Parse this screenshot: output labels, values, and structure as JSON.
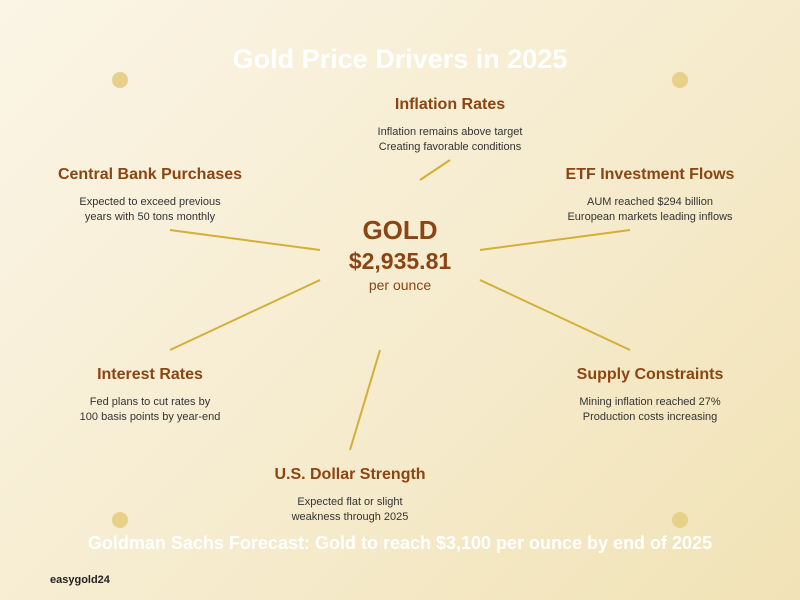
{
  "title": "Gold Price Drivers in 2025",
  "center": {
    "label": "GOLD",
    "price": "$2,935.81",
    "unit": "per ounce"
  },
  "drivers": [
    {
      "title": "Inflation Rates",
      "lines": [
        "Inflation remains above target",
        "Creating favorable conditions"
      ]
    },
    {
      "title": "Central Bank Purchases",
      "lines": [
        "Expected to exceed previous",
        "years with 50 tons monthly"
      ]
    },
    {
      "title": "ETF Investment Flows",
      "lines": [
        "AUM reached $294 billion",
        "European markets leading inflows"
      ]
    },
    {
      "title": "Interest Rates",
      "lines": [
        "Fed plans to cut rates by",
        "100 basis points by year-end"
      ]
    },
    {
      "title": "Supply Constraints",
      "lines": [
        "Mining inflation reached 27%",
        "Production costs increasing"
      ]
    },
    {
      "title": "U.S. Dollar Strength",
      "lines": [
        "Expected flat or slight",
        "weakness through 2025"
      ]
    }
  ],
  "footer": "Goldman Sachs Forecast: Gold to reach $3,100 per ounce by end of 2025",
  "brand": "easygold24",
  "colors": {
    "accent": "#8b4513",
    "connector": "#d4af37",
    "dot": "#e6d08a"
  }
}
